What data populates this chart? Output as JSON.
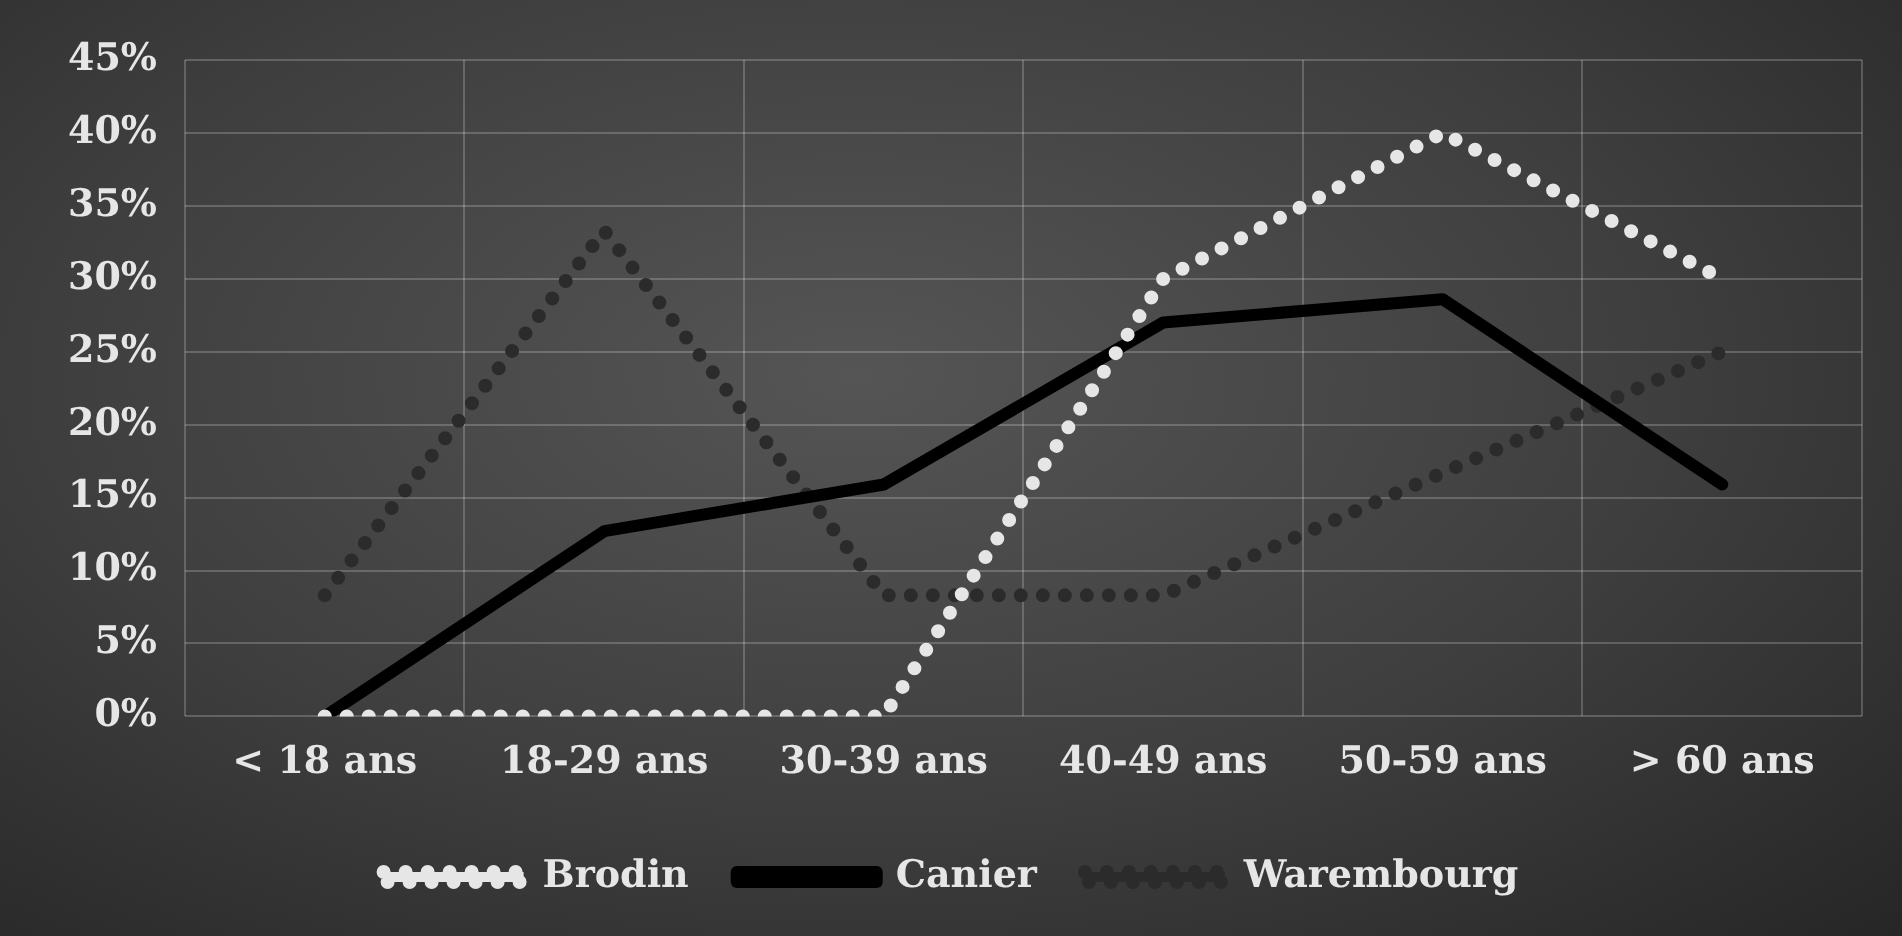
{
  "chart_data": {
    "type": "line",
    "categories": [
      "< 18 ans",
      "18-29 ans",
      "30-39 ans",
      "40-49 ans",
      "50-59 ans",
      "> 60 ans"
    ],
    "series": [
      {
        "name": "Brodin",
        "color": "#e6e6e6",
        "line_style": "dotted",
        "values": [
          0,
          0,
          0,
          30,
          40,
          30
        ]
      },
      {
        "name": "Canier",
        "color": "#000000",
        "line_style": "solid",
        "values": [
          0,
          12.7,
          15.9,
          27,
          28.6,
          15.9
        ]
      },
      {
        "name": "Warembourg",
        "color": "#2b2b2b",
        "line_style": "dotted",
        "values": [
          8.3,
          33.3,
          8.3,
          8.3,
          16.7,
          25
        ]
      }
    ],
    "ylim": [
      0,
      45
    ],
    "yticks": [
      {
        "value": 0,
        "label": "0%"
      },
      {
        "value": 5,
        "label": "5%"
      },
      {
        "value": 10,
        "label": "10%"
      },
      {
        "value": 15,
        "label": "15%"
      },
      {
        "value": 20,
        "label": "20%"
      },
      {
        "value": 25,
        "label": "25%"
      },
      {
        "value": 30,
        "label": "30%"
      },
      {
        "value": 35,
        "label": "35%"
      },
      {
        "value": 40,
        "label": "40%"
      },
      {
        "value": 45,
        "label": "45%"
      }
    ],
    "grid": true,
    "legend": "bottom",
    "marker": "none"
  }
}
